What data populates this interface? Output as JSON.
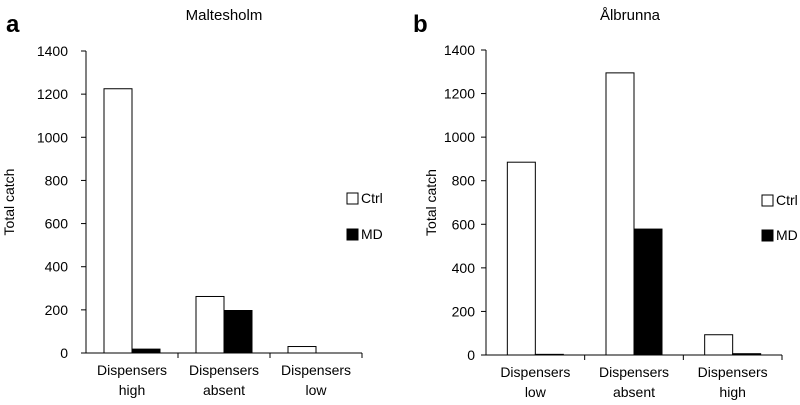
{
  "chart_data": [
    {
      "type": "bar",
      "panel": "a",
      "title": "Maltesholm",
      "ylabel": "Total catch",
      "xlabel": "",
      "ylim": [
        0,
        1400
      ],
      "yticks": [
        0,
        200,
        400,
        600,
        800,
        1000,
        1200,
        1400
      ],
      "categories": [
        [
          "Dispensers",
          "high"
        ],
        [
          "Dispensers",
          "absent"
        ],
        [
          "Dispensers",
          "low"
        ]
      ],
      "series": [
        {
          "name": "Ctrl",
          "color": "#ffffff",
          "values": [
            1225,
            262,
            30
          ]
        },
        {
          "name": "MD",
          "color": "#000000",
          "values": [
            18,
            197,
            0
          ]
        }
      ],
      "legend": "right",
      "grid": false
    },
    {
      "type": "bar",
      "panel": "b",
      "title": "Ålbrunna",
      "ylabel": "Total catch",
      "xlabel": "",
      "ylim": [
        0,
        1400
      ],
      "yticks": [
        0,
        200,
        400,
        600,
        800,
        1000,
        1200,
        1400
      ],
      "categories": [
        [
          "Dispensers",
          "low"
        ],
        [
          "Dispensers",
          "absent"
        ],
        [
          "Dispensers",
          "high"
        ]
      ],
      "series": [
        {
          "name": "Ctrl",
          "color": "#ffffff",
          "values": [
            885,
            1295,
            93
          ]
        },
        {
          "name": "MD",
          "color": "#000000",
          "values": [
            3,
            578,
            6
          ]
        }
      ],
      "legend": "right",
      "grid": false
    }
  ]
}
